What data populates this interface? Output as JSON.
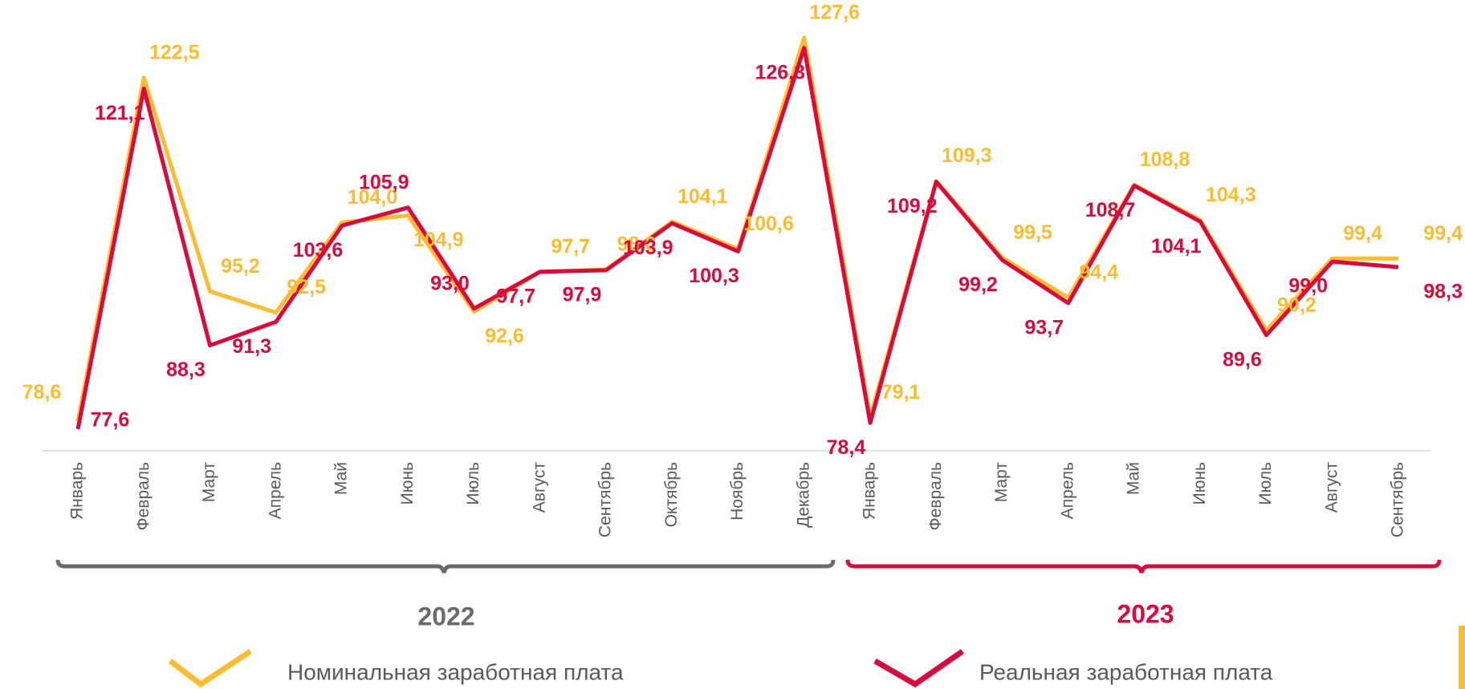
{
  "chart_data": {
    "type": "line",
    "categories": [
      "Январь",
      "Февраль",
      "Март",
      "Апрель",
      "Май",
      "Июнь",
      "Июль",
      "Август",
      "Сентябрь",
      "Октябрь",
      "Ноябрь",
      "Декабрь",
      "Январь",
      "Февраль",
      "Март",
      "Апрель",
      "Май",
      "Июнь",
      "Июль",
      "Август",
      "Сентябрь"
    ],
    "groups": [
      "2022",
      "2023"
    ],
    "series": [
      {
        "name": "Номинальная заработная плата",
        "color": "#fbbc2e",
        "values": [
          78.6,
          122.5,
          95.2,
          92.5,
          104.0,
          104.9,
          92.6,
          97.7,
          98.0,
          104.1,
          100.6,
          127.6,
          79.1,
          109.3,
          99.5,
          94.4,
          108.8,
          104.3,
          90.2,
          99.4,
          99.4
        ],
        "value_labels": [
          "78,6",
          "122,5",
          "95,2",
          "92,5",
          "104,0",
          "104,9",
          "92,6",
          "97,7",
          "98,0",
          "104,1",
          "100,6",
          "127,6",
          "79,1",
          "109,3",
          "99,5",
          "94,4",
          "108,8",
          "104,3",
          "90,2",
          "99,4",
          "99,4"
        ]
      },
      {
        "name": "Реальная заработная плата",
        "color": "#dc0a3c",
        "values": [
          77.6,
          121.1,
          88.3,
          91.3,
          103.6,
          105.9,
          93.0,
          97.7,
          97.9,
          103.9,
          100.3,
          126.3,
          78.4,
          109.2,
          99.2,
          93.7,
          108.7,
          104.1,
          89.6,
          99.0,
          98.3
        ],
        "value_labels": [
          "77,6",
          "121,1",
          "88,3",
          "91,3",
          "103,6",
          "105,9",
          "93,0",
          "97,7",
          "97,9",
          "103,9",
          "100,3",
          "126,3",
          "78,4",
          "109,2",
          "99,2",
          "93,7",
          "108,7",
          "104,1",
          "89,6",
          "99,0",
          "98,3"
        ]
      }
    ]
  }
}
